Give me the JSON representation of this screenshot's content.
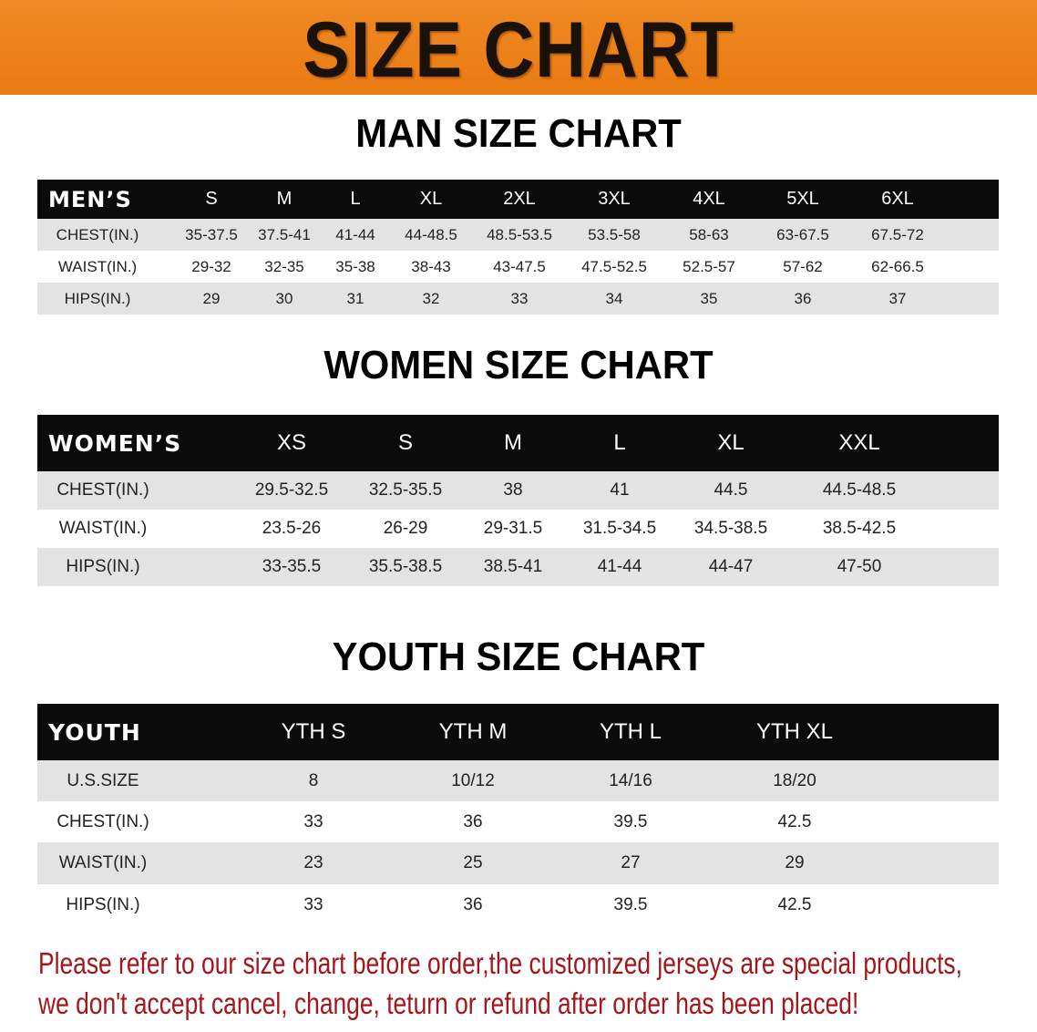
{
  "banner": {
    "title": "SIZE CHART"
  },
  "men": {
    "title": "MAN SIZE CHART",
    "corner": "MEN’S",
    "sizes": [
      "S",
      "M",
      "L",
      "XL",
      "2XL",
      "3XL",
      "4XL",
      "5XL",
      "6XL"
    ],
    "rows": [
      {
        "label": "CHEST(IN.)",
        "values": [
          "35-37.5",
          "37.5-41",
          "41-44",
          "44-48.5",
          "48.5-53.5",
          "53.5-58",
          "58-63",
          "63-67.5",
          "67.5-72"
        ]
      },
      {
        "label": "WAIST(IN.)",
        "values": [
          "29-32",
          "32-35",
          "35-38",
          "38-43",
          "43-47.5",
          "47.5-52.5",
          "52.5-57",
          "57-62",
          "62-66.5"
        ]
      },
      {
        "label": "HIPS(IN.)",
        "values": [
          "29",
          "30",
          "31",
          "32",
          "33",
          "34",
          "35",
          "36",
          "37"
        ]
      }
    ]
  },
  "women": {
    "title": "WOMEN SIZE CHART",
    "corner": "WOMEN’S",
    "sizes": [
      "XS",
      "S",
      "M",
      "L",
      "XL",
      "XXL"
    ],
    "rows": [
      {
        "label": "CHEST(IN.)",
        "values": [
          "29.5-32.5",
          "32.5-35.5",
          "38",
          "41",
          "44.5",
          "44.5-48.5"
        ]
      },
      {
        "label": "WAIST(IN.)",
        "values": [
          "23.5-26",
          "26-29",
          "29-31.5",
          "31.5-34.5",
          "34.5-38.5",
          "38.5-42.5"
        ]
      },
      {
        "label": "HIPS(IN.)",
        "values": [
          "33-35.5",
          "35.5-38.5",
          "38.5-41",
          "41-44",
          "44-47",
          "47-50"
        ]
      }
    ]
  },
  "youth": {
    "title": "YOUTH SIZE CHART",
    "corner": "YOUTH",
    "sizes": [
      "YTH S",
      "YTH M",
      "YTH L",
      "YTH XL"
    ],
    "rows": [
      {
        "label": "U.S.SIZE",
        "values": [
          "8",
          "10/12",
          "14/16",
          "18/20"
        ]
      },
      {
        "label": "CHEST(IN.)",
        "values": [
          "33",
          "36",
          "39.5",
          "42.5"
        ]
      },
      {
        "label": "WAIST(IN.)",
        "values": [
          "23",
          "25",
          "27",
          "29"
        ]
      },
      {
        "label": "HIPS(IN.)",
        "values": [
          "33",
          "36",
          "39.5",
          "42.5"
        ]
      }
    ]
  },
  "footer": {
    "line1": "Please refer to our size chart before order,the customized jerseys are special products,",
    "line2": "we don't accept cancel, change, teturn or refund after order has been placed!"
  },
  "colors": {
    "banner": "#ee8219",
    "header": "#0b0b0b",
    "row_gray": "#e3e3e3",
    "footer_text": "#a3161b"
  }
}
